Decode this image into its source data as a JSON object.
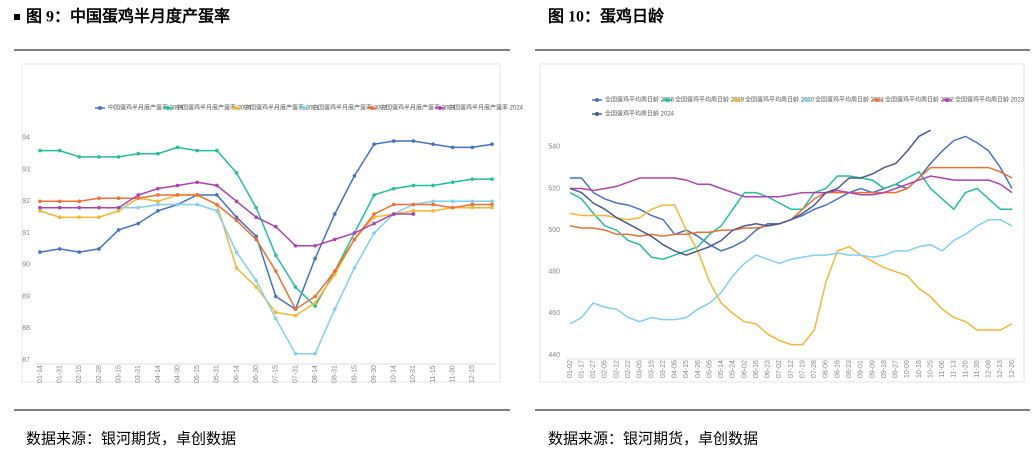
{
  "chart_data": [
    {
      "type": "line",
      "title": "图 9：中国蛋鸡半月度产蛋率",
      "source": "数据来源：银河期货，卓创数据",
      "categories": [
        "01-14",
        "01-31",
        "02-15",
        "02-28",
        "03-15",
        "03-31",
        "04-14",
        "04-30",
        "05-15",
        "05-31",
        "06-14",
        "06-30",
        "07-15",
        "07-31",
        "08-14",
        "08-31",
        "09-15",
        "09-30",
        "10-14",
        "10-31",
        "11-15",
        "11-30",
        "12-15",
        null
      ],
      "ylim": [
        87,
        94.5
      ],
      "yticks": [
        87,
        88,
        89,
        90,
        91,
        92,
        93,
        94
      ],
      "grid": false,
      "series": [
        {
          "name": "中国蛋鸡半月度产蛋率 2019",
          "color": "#4472c4",
          "values": [
            90.4,
            90.5,
            90.4,
            90.5,
            91.1,
            91.3,
            91.7,
            91.9,
            92.2,
            92.2,
            91.5,
            90.9,
            89.0,
            88.6,
            90.2,
            91.6,
            92.8,
            93.8,
            93.9,
            93.9,
            93.8,
            93.7,
            93.7,
            93.8
          ]
        },
        {
          "name": "中国蛋鸡半月度产蛋率 2020",
          "color": "#1fbfa0",
          "values": [
            93.6,
            93.6,
            93.4,
            93.4,
            93.4,
            93.5,
            93.5,
            93.7,
            93.6,
            93.6,
            92.9,
            91.8,
            90.3,
            89.3,
            88.7,
            89.8,
            91.0,
            92.2,
            92.4,
            92.5,
            92.5,
            92.6,
            92.7,
            92.7
          ]
        },
        {
          "name": "中国蛋鸡半月度产蛋率 2021",
          "color": "#f5b830",
          "values": [
            91.7,
            91.5,
            91.5,
            91.5,
            91.7,
            92.1,
            92.0,
            92.2,
            92.2,
            91.9,
            89.9,
            89.3,
            88.5,
            88.4,
            88.8,
            89.7,
            90.8,
            91.5,
            91.6,
            91.7,
            91.7,
            91.8,
            91.8,
            91.8
          ]
        },
        {
          "name": "中国蛋鸡半月度产蛋率 2022",
          "color": "#80d0f0",
          "values": [
            91.8,
            91.8,
            91.8,
            91.8,
            91.8,
            91.8,
            91.9,
            91.9,
            91.9,
            91.7,
            90.4,
            89.5,
            88.3,
            87.2,
            87.2,
            88.6,
            89.9,
            91.0,
            91.6,
            91.9,
            92.0,
            92.0,
            92.0,
            92.0
          ]
        },
        {
          "name": "中国蛋鸡半月度产蛋率 2023",
          "color": "#f07030",
          "values": [
            92.0,
            92.0,
            92.0,
            92.1,
            92.1,
            92.1,
            92.2,
            92.2,
            92.2,
            91.9,
            91.4,
            90.8,
            89.8,
            88.6,
            89.0,
            89.8,
            90.8,
            91.6,
            91.9,
            91.9,
            91.9,
            91.8,
            91.9,
            91.9
          ]
        },
        {
          "name": "中国蛋鸡半月度产蛋率 2024",
          "color": "#b040b0",
          "values": [
            91.8,
            91.8,
            91.8,
            91.8,
            91.8,
            92.2,
            92.4,
            92.5,
            92.6,
            92.5,
            92.0,
            91.5,
            91.2,
            90.6,
            90.6,
            90.8,
            91.0,
            91.3,
            91.6,
            91.6,
            null,
            null,
            null,
            null
          ]
        }
      ]
    },
    {
      "type": "line",
      "title": "图 10：蛋鸡日龄",
      "source": "数据来源：银河期货，卓创数据",
      "categories": [
        "01-02",
        "01-17",
        "01-27",
        "02-05",
        "02-12",
        "02-22",
        "03-05",
        "03-15",
        "03-22",
        "04-05",
        "04-15",
        "04-26",
        "05-05",
        "05-14",
        "05-24",
        "06-02",
        "06-16",
        "06-23",
        "07-02",
        "07-12",
        "07-19",
        "07-28",
        "08-06",
        "08-16",
        "08-23",
        "09-01",
        "09-09",
        "09-18",
        "09-27",
        "10-09",
        "10-18",
        "10-25",
        "11-06",
        "11-13",
        "11-20",
        "11-30",
        "12-08",
        "12-13",
        "12-26"
      ],
      "ylim": [
        440,
        550
      ],
      "yticks": [
        440,
        460,
        480,
        500,
        520,
        540
      ],
      "grid": false,
      "series": [
        {
          "name": "全国蛋鸡平均周日龄 2018",
          "color": "#4472c4",
          "values": [
            525,
            525,
            518,
            515,
            513,
            512,
            510,
            507,
            505,
            498,
            500,
            497,
            493,
            490,
            492,
            495,
            500,
            503,
            503,
            505,
            507,
            510,
            512,
            515,
            518,
            520,
            518,
            520,
            522,
            520,
            525,
            532,
            538,
            543,
            545,
            542,
            538,
            530,
            520
          ]
        },
        {
          "name": "全国蛋鸡平均周日龄 2019",
          "color": "#1fbfa0",
          "values": [
            518,
            515,
            508,
            502,
            500,
            495,
            493,
            487,
            486,
            488,
            490,
            492,
            498,
            502,
            510,
            518,
            518,
            516,
            513,
            510,
            510,
            518,
            520,
            526,
            526,
            525,
            524,
            520,
            522,
            525,
            528,
            520,
            515,
            510,
            518,
            520,
            515,
            510,
            510
          ]
        },
        {
          "name": "全国蛋鸡平均周日龄 2020",
          "color": "#f5b830",
          "values": [
            508,
            507,
            507,
            507,
            506,
            505,
            506,
            510,
            512,
            512,
            500,
            490,
            475,
            465,
            460,
            456,
            455,
            450,
            447,
            445,
            445,
            452,
            475,
            490,
            492,
            488,
            485,
            482,
            480,
            478,
            472,
            468,
            462,
            458,
            456,
            452,
            452,
            452,
            455
          ]
        },
        {
          "name": "全国蛋鸡平均周日龄 2021",
          "color": "#80d0f0",
          "values": [
            455,
            458,
            465,
            463,
            462,
            458,
            456,
            458,
            457,
            457,
            458,
            462,
            465,
            470,
            478,
            484,
            488,
            486,
            484,
            486,
            487,
            488,
            488,
            489,
            488,
            488,
            487,
            488,
            490,
            490,
            492,
            493,
            490,
            495,
            498,
            502,
            505,
            505,
            502
          ]
        },
        {
          "name": "全国蛋鸡平均周日龄 2022",
          "color": "#f07030",
          "values": [
            502,
            501,
            501,
            500,
            498,
            498,
            497,
            498,
            497,
            498,
            498,
            499,
            499,
            500,
            500,
            501,
            501,
            502,
            503,
            505,
            510,
            515,
            518,
            518,
            518,
            518,
            518,
            518,
            518,
            520,
            525,
            530,
            530,
            530,
            530,
            530,
            530,
            528,
            525
          ]
        },
        {
          "name": "全国蛋鸡平均周日龄 2023",
          "color": "#b040b0",
          "values": [
            520,
            520,
            519,
            520,
            521,
            523,
            525,
            525,
            525,
            525,
            524,
            522,
            522,
            520,
            518,
            516,
            516,
            516,
            516,
            517,
            518,
            518,
            518,
            519,
            518,
            517,
            517,
            518,
            520,
            522,
            524,
            526,
            525,
            524,
            524,
            524,
            524,
            522,
            518
          ]
        },
        {
          "name": "全国蛋鸡平均周日龄 2024",
          "color": "#4a5a8a",
          "values": [
            520,
            518,
            513,
            510,
            506,
            503,
            500,
            497,
            493,
            490,
            488,
            490,
            492,
            495,
            500,
            502,
            503,
            502,
            503,
            505,
            508,
            512,
            518,
            520,
            525,
            525,
            527,
            530,
            532,
            538,
            545,
            548,
            null,
            null,
            null,
            null,
            null,
            null,
            null
          ]
        }
      ]
    }
  ]
}
